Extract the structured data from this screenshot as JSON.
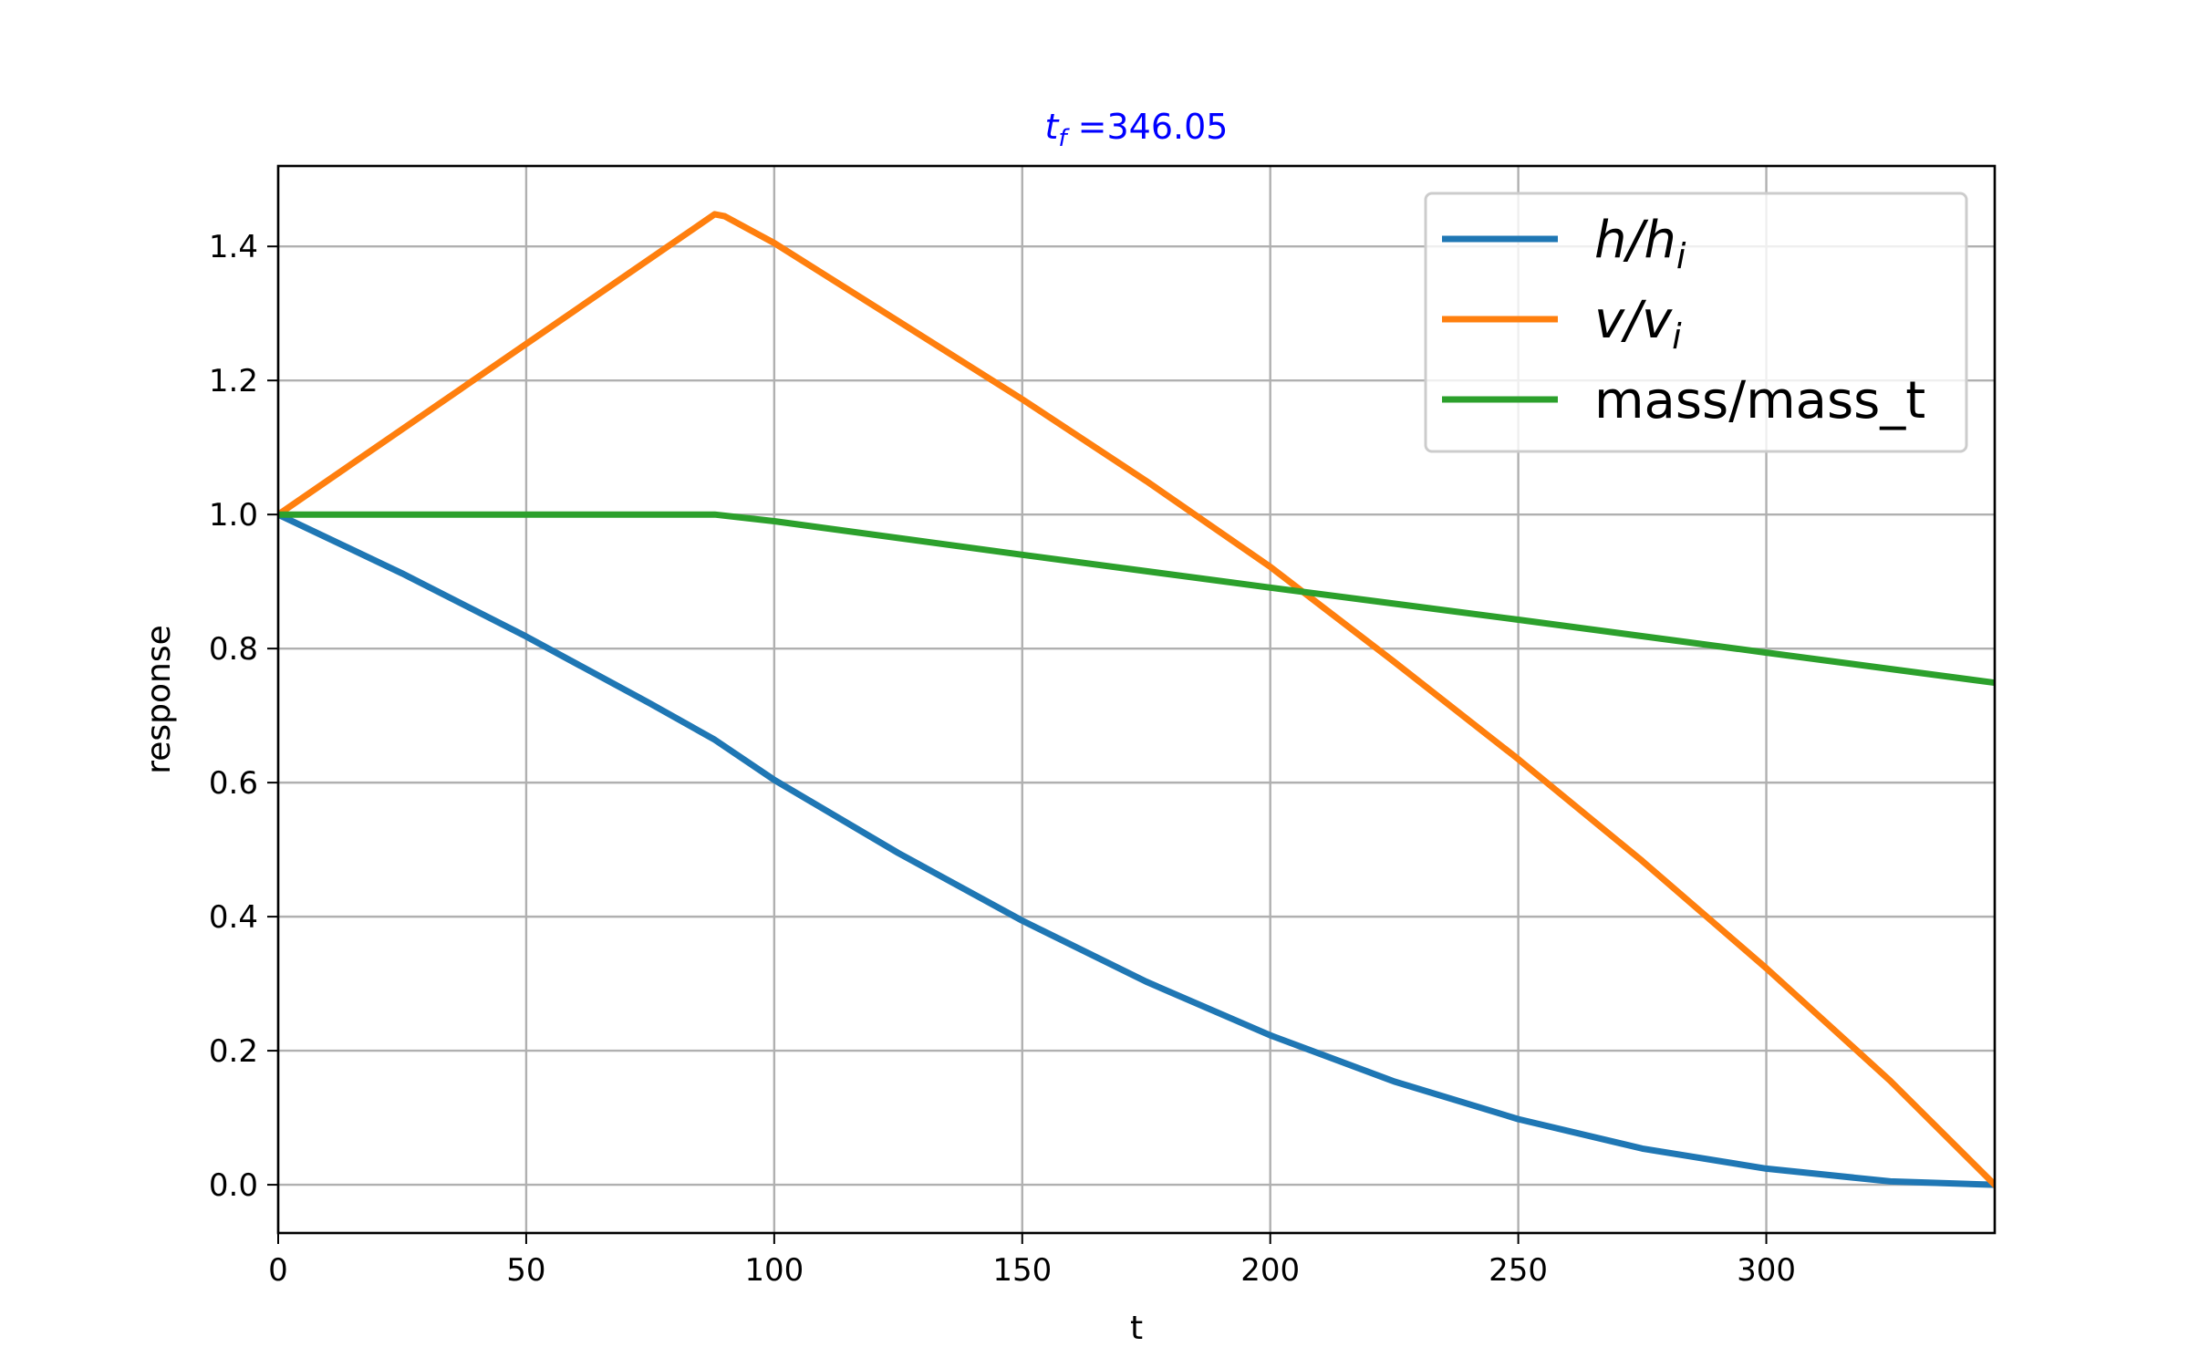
{
  "chart_data": {
    "type": "line",
    "title_prefix": "t",
    "title_subscript": "f",
    "title_suffix": " =346.05",
    "title_color": "#0000ff",
    "xlabel": "t",
    "ylabel": "response",
    "xlim": [
      0,
      346.05
    ],
    "ylim": [
      -0.072,
      1.52
    ],
    "xticks": [
      0,
      50,
      100,
      150,
      200,
      250,
      300
    ],
    "xtick_labels": [
      "0",
      "50",
      "100",
      "150",
      "200",
      "250",
      "300"
    ],
    "yticks": [
      0.0,
      0.2,
      0.4,
      0.6,
      0.8,
      1.0,
      1.2,
      1.4
    ],
    "ytick_labels": [
      "0.0",
      "0.2",
      "0.4",
      "0.6",
      "0.8",
      "1.0",
      "1.2",
      "1.4"
    ],
    "grid": true,
    "legend_position": "top-right",
    "series": [
      {
        "name": "h/h_i",
        "legend_main": "h/h",
        "legend_sub": "i",
        "italic": true,
        "color": "#1f77b4",
        "points": [
          [
            0,
            1.0
          ],
          [
            25,
            0.912
          ],
          [
            50,
            0.818
          ],
          [
            75,
            0.718
          ],
          [
            88,
            0.664
          ],
          [
            100,
            0.604
          ],
          [
            125,
            0.495
          ],
          [
            150,
            0.394
          ],
          [
            175,
            0.303
          ],
          [
            200,
            0.223
          ],
          [
            225,
            0.154
          ],
          [
            250,
            0.098
          ],
          [
            275,
            0.054
          ],
          [
            300,
            0.024
          ],
          [
            325,
            0.005
          ],
          [
            346.05,
            0.0
          ]
        ]
      },
      {
        "name": "v/v_i",
        "legend_main": "v/v",
        "legend_sub": "i",
        "italic": true,
        "color": "#ff7f0e",
        "points": [
          [
            0,
            1.0
          ],
          [
            88,
            1.448
          ],
          [
            90,
            1.445
          ],
          [
            100,
            1.405
          ],
          [
            150,
            1.172
          ],
          [
            175,
            1.05
          ],
          [
            200,
            0.922
          ],
          [
            225,
            0.78
          ],
          [
            250,
            0.635
          ],
          [
            275,
            0.483
          ],
          [
            300,
            0.323
          ],
          [
            325,
            0.155
          ],
          [
            346.05,
            0.0
          ]
        ]
      },
      {
        "name": "mass/mass_t",
        "legend_main": "mass/mass_t",
        "legend_sub": "",
        "italic": false,
        "color": "#2ca02c",
        "points": [
          [
            0,
            1.0
          ],
          [
            88,
            1.0
          ],
          [
            100,
            0.99
          ],
          [
            150,
            0.94
          ],
          [
            200,
            0.891
          ],
          [
            250,
            0.843
          ],
          [
            300,
            0.794
          ],
          [
            346.05,
            0.749
          ]
        ]
      }
    ]
  }
}
